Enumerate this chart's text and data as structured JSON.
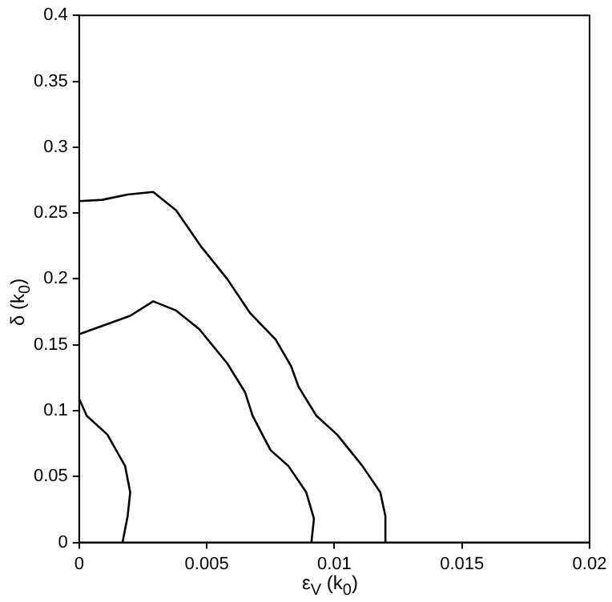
{
  "chart_data": {
    "type": "line",
    "xlabel": "ε$_{V}$ (k$_{0}$)",
    "ylabel": "δ (k$_{0}$)",
    "xlim": [
      0,
      0.02
    ],
    "xticks": [
      0,
      0.005,
      0.01,
      0.015,
      0.02
    ],
    "ylim": [
      0,
      0.4
    ],
    "yticks": [
      0,
      0.05,
      0.1,
      0.15,
      0.2,
      0.25,
      0.3,
      0.35,
      0.4
    ],
    "grid": false,
    "legend": false,
    "marker": "none",
    "line_style": "solid",
    "series": [
      {
        "color": "#000000",
        "x": [
          0,
          0.0009,
          0.0019,
          0.0029,
          0.0038,
          0.0048,
          0.0058,
          0.0067,
          0.0077,
          0.0083,
          0.0086,
          0.0093,
          0.0101,
          0.0111,
          0.0118,
          0.012,
          0.012
        ],
        "values": [
          0.259,
          0.26,
          0.264,
          0.266,
          0.252,
          0.224,
          0.2,
          0.174,
          0.154,
          0.134,
          0.118,
          0.096,
          0.082,
          0.058,
          0.038,
          0.02,
          0
        ]
      },
      {
        "color": "#000000",
        "x": [
          0,
          0.002,
          0.0029,
          0.0038,
          0.0047,
          0.0058,
          0.0065,
          0.0068,
          0.0075,
          0.0082,
          0.0089,
          0.0092,
          0.0091
        ],
        "values": [
          0.158,
          0.172,
          0.183,
          0.176,
          0.162,
          0.136,
          0.114,
          0.096,
          0.07,
          0.058,
          0.038,
          0.018,
          0
        ]
      },
      {
        "color": "#000000",
        "x": [
          0,
          0.0003,
          0.0011,
          0.0018,
          0.002,
          0.0019,
          0.0017
        ],
        "values": [
          0.109,
          0.096,
          0.082,
          0.058,
          0.038,
          0.02,
          0
        ]
      }
    ]
  }
}
